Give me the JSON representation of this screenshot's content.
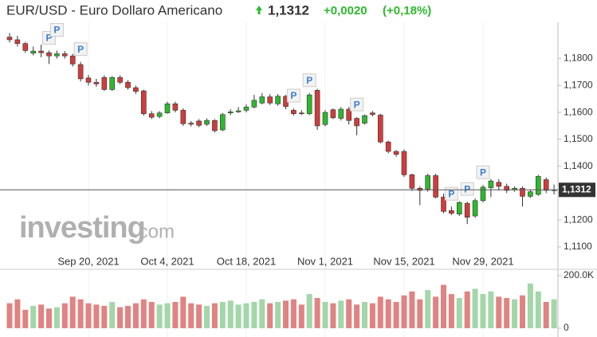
{
  "chart_data": {
    "type": "candlestick",
    "title": "EUR/USD - Euro Dollaro Americano",
    "change": "+0,0020",
    "change_pct": "(+0,18%)",
    "watermark": [
      "investing",
      ".com"
    ],
    "last": {
      "value": 1.1312,
      "label": "1,1312"
    },
    "up_color": "#2eb82e",
    "down_color": "#d03c3c",
    "volume_up_color": "#a3d6a9",
    "volume_down_color": "#e08383",
    "categories": [
      null,
      null,
      null,
      null,
      null,
      null,
      null,
      null,
      null,
      null,
      "Sep 20, 2021",
      null,
      null,
      null,
      null,
      null,
      null,
      null,
      null,
      null,
      "Oct 4, 2021",
      null,
      null,
      null,
      null,
      null,
      null,
      null,
      null,
      null,
      "Oct 18, 2021",
      null,
      null,
      null,
      null,
      null,
      null,
      null,
      null,
      null,
      "Nov 1, 2021",
      null,
      null,
      null,
      null,
      null,
      null,
      null,
      null,
      null,
      "Nov 15, 2021",
      null,
      null,
      null,
      null,
      null,
      null,
      null,
      null,
      null,
      "Nov 29, 2021",
      null,
      null,
      null,
      null,
      null,
      null,
      null,
      null,
      null
    ],
    "open": [
      1.188,
      1.187,
      1.1856,
      1.182,
      1.1828,
      1.1822,
      1.181,
      1.1818,
      1.181,
      1.1778,
      1.1728,
      1.1712,
      1.173,
      1.1685,
      1.173,
      1.1712,
      1.1692,
      1.168,
      1.1595,
      1.1585,
      1.1598,
      1.1632,
      1.1608,
      1.156,
      1.1568,
      1.1556,
      1.157,
      1.1535,
      1.1598,
      1.1602,
      1.1608,
      1.162,
      1.1635,
      1.1658,
      1.1632,
      1.166,
      1.1608,
      1.1598,
      1.1595,
      1.1682,
      1.1555,
      1.161,
      1.1578,
      1.1612,
      1.1578,
      1.156,
      1.1598,
      1.159,
      1.149,
      1.1455,
      1.1455,
      1.1368,
      1.1318,
      1.1315,
      1.1365,
      1.1285,
      1.1235,
      1.1222,
      1.1262,
      1.1215,
      1.1272,
      1.132,
      1.134,
      1.1325,
      1.1312,
      1.1318,
      1.1288,
      1.1295,
      1.135,
      1.131
    ],
    "high": [
      1.1895,
      1.1885,
      1.1862,
      1.1845,
      1.1852,
      1.183,
      1.183,
      1.1828,
      1.1818,
      1.1788,
      1.174,
      1.1725,
      1.1738,
      1.1735,
      1.1738,
      1.172,
      1.17,
      1.1685,
      1.1605,
      1.1605,
      1.164,
      1.164,
      1.1615,
      1.1568,
      1.1575,
      1.1578,
      1.1575,
      1.1598,
      1.1612,
      1.162,
      1.163,
      1.1665,
      1.1672,
      1.1668,
      1.1668,
      1.1665,
      1.1615,
      1.1608,
      1.1672,
      1.1688,
      1.1608,
      1.1615,
      1.162,
      1.162,
      1.1582,
      1.1592,
      1.1605,
      1.1595,
      1.1495,
      1.146,
      1.1462,
      1.1372,
      1.1325,
      1.1372,
      1.1372,
      1.1298,
      1.125,
      1.127,
      1.1268,
      1.128,
      1.133,
      1.1352,
      1.1352,
      1.1335,
      1.1325,
      1.1325,
      1.1312,
      1.1368,
      1.1358,
      1.1332
    ],
    "low": [
      1.186,
      1.1845,
      1.1822,
      1.1812,
      1.1805,
      1.178,
      1.18,
      1.18,
      1.177,
      1.1715,
      1.17,
      1.1695,
      1.168,
      1.168,
      1.1705,
      1.1685,
      1.1668,
      1.1588,
      1.1575,
      1.1578,
      1.1595,
      1.16,
      1.155,
      1.1548,
      1.1545,
      1.155,
      1.1525,
      1.153,
      1.159,
      1.1598,
      1.16,
      1.1615,
      1.163,
      1.1628,
      1.1625,
      1.1612,
      1.1588,
      1.159,
      1.159,
      1.1535,
      1.1548,
      1.1575,
      1.157,
      1.1555,
      1.1515,
      1.1555,
      1.1585,
      1.1485,
      1.1448,
      1.1435,
      1.136,
      1.1308,
      1.1255,
      1.1305,
      1.128,
      1.1225,
      1.1218,
      1.1215,
      1.1185,
      1.1208,
      1.1265,
      1.1285,
      1.131,
      1.13,
      1.1305,
      1.125,
      1.1282,
      1.129,
      1.13,
      1.1295
    ],
    "close": [
      1.187,
      1.1856,
      1.183,
      1.1828,
      1.1822,
      1.181,
      1.1818,
      1.181,
      1.178,
      1.1725,
      1.1712,
      1.1706,
      1.1685,
      1.173,
      1.1712,
      1.1692,
      1.1678,
      1.1595,
      1.1582,
      1.1598,
      1.1632,
      1.1608,
      1.1558,
      1.1556,
      1.1552,
      1.157,
      1.1532,
      1.1592,
      1.1602,
      1.1606,
      1.162,
      1.1645,
      1.1658,
      1.1635,
      1.166,
      1.1622,
      1.1595,
      1.1595,
      1.1665,
      1.155,
      1.16,
      1.158,
      1.1612,
      1.157,
      1.155,
      1.1588,
      1.1592,
      1.149,
      1.1455,
      1.1444,
      1.1368,
      1.1318,
      1.131,
      1.1365,
      1.1285,
      1.1232,
      1.1225,
      1.1265,
      1.121,
      1.1272,
      1.1322,
      1.1345,
      1.1325,
      1.131,
      1.1318,
      1.1288,
      1.1305,
      1.1362,
      1.131,
      1.1312
    ],
    "events": [
      null,
      null,
      null,
      null,
      null,
      "P",
      "P",
      null,
      null,
      "P",
      null,
      null,
      null,
      null,
      null,
      null,
      null,
      null,
      null,
      null,
      null,
      null,
      null,
      null,
      null,
      null,
      null,
      null,
      null,
      null,
      null,
      null,
      null,
      null,
      null,
      null,
      "P",
      null,
      "P",
      null,
      null,
      null,
      null,
      null,
      "P",
      null,
      null,
      null,
      null,
      null,
      null,
      null,
      null,
      null,
      null,
      null,
      "P",
      null,
      "P",
      null,
      "P",
      null,
      null,
      null,
      null,
      null,
      null,
      null,
      null,
      null
    ],
    "ylim": [
      1.107,
      1.1935
    ],
    "yticks": [
      {
        "value": 1.11,
        "label": "1,1100"
      },
      {
        "value": 1.12,
        "label": "1,1200"
      },
      {
        "value": 1.13,
        "label": "1,1300"
      },
      {
        "value": 1.14,
        "label": "1,1400"
      },
      {
        "value": 1.15,
        "label": "1,1500"
      },
      {
        "value": 1.16,
        "label": "1,1600"
      },
      {
        "value": 1.17,
        "label": "1,1700"
      },
      {
        "value": 1.18,
        "label": "1,1800"
      }
    ],
    "volume": {
      "values": [
        95000,
        110000,
        70000,
        85000,
        90000,
        75000,
        80000,
        95000,
        120000,
        110000,
        95000,
        90000,
        85000,
        100000,
        80000,
        85000,
        95000,
        110000,
        100000,
        90000,
        95000,
        100000,
        120000,
        95000,
        90000,
        85000,
        95000,
        100000,
        105000,
        90000,
        95000,
        100000,
        110000,
        95000,
        100000,
        105000,
        110000,
        90000,
        130000,
        115000,
        100000,
        95000,
        105000,
        110000,
        90000,
        100000,
        95000,
        120000,
        110000,
        100000,
        125000,
        140000,
        110000,
        145000,
        120000,
        165000,
        130000,
        115000,
        140000,
        150000,
        130000,
        140000,
        120000,
        115000,
        110000,
        125000,
        170000,
        140000,
        100000,
        110000
      ],
      "ylim": [
        0,
        200000
      ],
      "yticks": [
        0,
        {
          "value": 200000,
          "label": "200.0K"
        }
      ]
    }
  }
}
